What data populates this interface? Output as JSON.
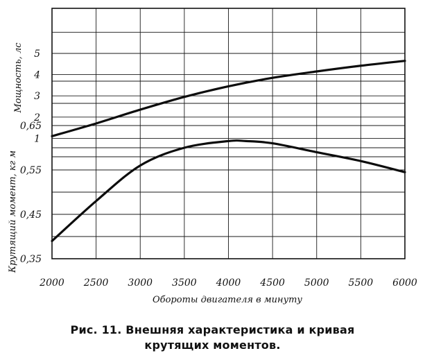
{
  "caption": {
    "line1": "Рис. 11. Внешняя характеристика и кривая",
    "line2": "крутящих моментов."
  },
  "chart_data": [
    {
      "type": "line",
      "ylabel": "Мощность, лс",
      "xlabel": "Обороты двигателя в минуту",
      "xlim": [
        2000,
        6000
      ],
      "ylim": [
        0,
        6
      ],
      "y_ticks": [
        "1",
        "2",
        "3",
        "4",
        "5"
      ],
      "x_ticks": [
        "2000",
        "2500",
        "3000",
        "3500",
        "4000",
        "4500",
        "5000",
        "5500",
        "6000"
      ],
      "grid": true,
      "series": [
        {
          "x": [
            2000,
            2500,
            3000,
            3500,
            4000,
            4500,
            5000,
            5500,
            6000
          ],
          "y": [
            1.1,
            1.7,
            2.35,
            2.95,
            3.45,
            3.85,
            4.15,
            4.42,
            4.65
          ]
        }
      ]
    },
    {
      "type": "line",
      "ylabel": "Крутящий момент, кг м",
      "xlabel": "Обороты двигателя в минуту",
      "xlim": [
        2000,
        6000
      ],
      "ylim": [
        0.35,
        0.85
      ],
      "y_ticks": [
        "0,35",
        "0,45",
        "0,55",
        "0,65"
      ],
      "x_ticks": [
        "2000",
        "2500",
        "3000",
        "3500",
        "4000",
        "4500",
        "5000",
        "5500",
        "6000"
      ],
      "grid": true,
      "series": [
        {
          "x": [
            2000,
            2500,
            3000,
            3500,
            4000,
            4200,
            4500,
            5000,
            5500,
            6000
          ],
          "y": [
            0.39,
            0.48,
            0.56,
            0.6,
            0.615,
            0.615,
            0.61,
            0.59,
            0.57,
            0.545
          ]
        }
      ]
    }
  ]
}
